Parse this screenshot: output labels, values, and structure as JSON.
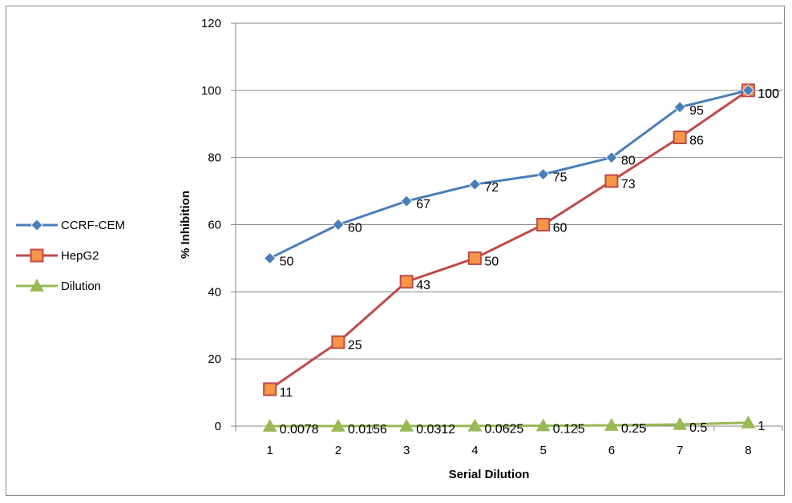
{
  "chart_data": {
    "type": "line",
    "title": "",
    "xlabel": "Serial Dilution",
    "ylabel": "% Inhibition",
    "categories": [
      "1",
      "2",
      "3",
      "4",
      "5",
      "6",
      "7",
      "8"
    ],
    "ylim": [
      0,
      120
    ],
    "yticks": [
      0,
      20,
      40,
      60,
      80,
      100,
      120
    ],
    "grid": true,
    "legend_position": "left",
    "series": [
      {
        "name": "CCRF-CEM",
        "color": "#4a7ebb",
        "marker": "diamond",
        "values": [
          50,
          60,
          67,
          72,
          75,
          80,
          95,
          100
        ],
        "labels": [
          "50",
          "60",
          "67",
          "72",
          "75",
          "80",
          "95",
          "100"
        ]
      },
      {
        "name": "HepG2",
        "color": "#be4b48",
        "marker_fill": "#f79646",
        "marker": "square",
        "values": [
          11,
          25,
          43,
          50,
          60,
          73,
          86,
          100
        ],
        "labels": [
          "11",
          "25",
          "43",
          "50",
          "60",
          "73",
          "86",
          "100"
        ]
      },
      {
        "name": "Dilution",
        "color": "#98b954",
        "marker": "triangle",
        "values": [
          0.0078,
          0.0156,
          0.0312,
          0.0625,
          0.125,
          0.25,
          0.5,
          1
        ],
        "labels": [
          "0.0078",
          "0.0156",
          "0.0312",
          "0.0625",
          "0.125",
          "0.25",
          "0.5",
          "1"
        ]
      }
    ]
  }
}
